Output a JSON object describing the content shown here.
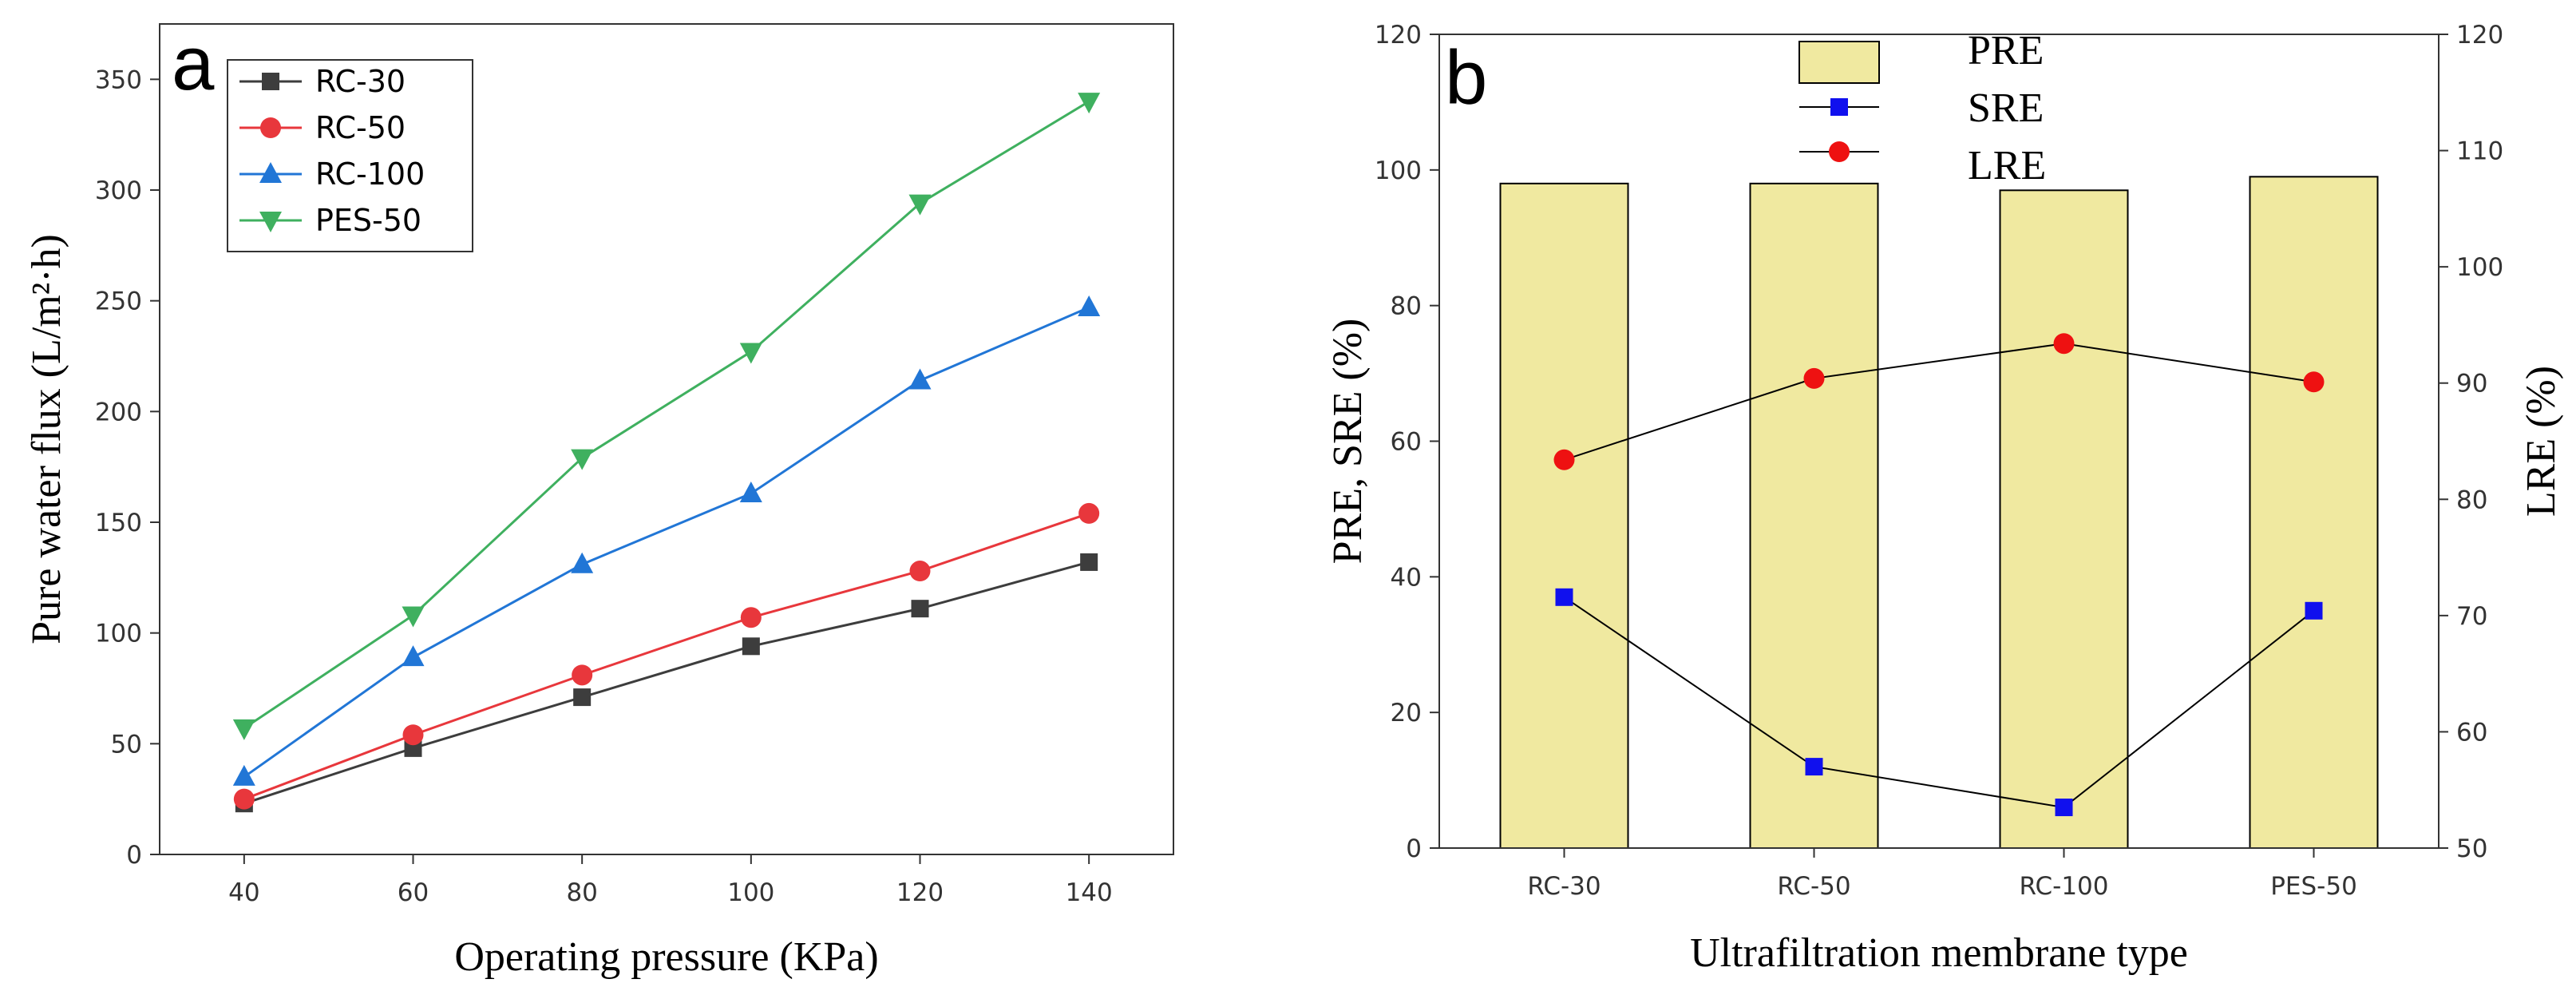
{
  "chart_data": [
    {
      "type": "line",
      "panel_label": "a",
      "xlabel": "Operating pressure (KPa)",
      "ylabel": "Pure water flux (L/m²·h)",
      "x": [
        40,
        60,
        80,
        100,
        120,
        140
      ],
      "xlim": [
        30,
        150
      ],
      "ylim": [
        0,
        375
      ],
      "xticks": [
        40,
        60,
        80,
        100,
        120,
        140
      ],
      "yticks": [
        0,
        50,
        100,
        150,
        200,
        250,
        300,
        350
      ],
      "legend_position": "top-left",
      "series": [
        {
          "name": "RC-30",
          "color": "#3d3d3d",
          "marker": "square",
          "values": [
            23,
            48,
            71,
            94,
            111,
            132
          ]
        },
        {
          "name": "RC-50",
          "color": "#e8373c",
          "marker": "circle",
          "values": [
            25,
            54,
            81,
            107,
            128,
            154
          ]
        },
        {
          "name": "RC-100",
          "color": "#2176d6",
          "marker": "triangle-up",
          "values": [
            35,
            89,
            131,
            163,
            214,
            247
          ]
        },
        {
          "name": "PES-50",
          "color": "#3fb05f",
          "marker": "triangle-down",
          "values": [
            57,
            108,
            179,
            227,
            294,
            340
          ]
        }
      ]
    },
    {
      "type": "bar",
      "panel_label": "b",
      "xlabel": "Ultrafiltration membrane type",
      "ylabel": "PRE, SRE  (%)",
      "y2label": "LRE  (%)",
      "categories": [
        "RC-30",
        "RC-50",
        "RC-100",
        "PES-50"
      ],
      "ylim": [
        0,
        120
      ],
      "y2lim": [
        50,
        120
      ],
      "yticks": [
        0,
        20,
        40,
        60,
        80,
        100,
        120
      ],
      "y2ticks": [
        50,
        60,
        70,
        80,
        90,
        100,
        110,
        120
      ],
      "legend_position": "top-center",
      "series": [
        {
          "name": "PRE",
          "kind": "bar",
          "axis": "left",
          "color": "#f0e9a0",
          "values": [
            98,
            98,
            97,
            99
          ]
        },
        {
          "name": "SRE",
          "kind": "line",
          "axis": "left",
          "color": "#1010ee",
          "marker": "square",
          "values": [
            37,
            12,
            6,
            35
          ]
        },
        {
          "name": "LRE",
          "kind": "line",
          "axis": "right",
          "color": "#ee1111",
          "marker": "circle",
          "values": [
            83.4,
            90.4,
            93.4,
            90.1
          ]
        }
      ]
    }
  ]
}
